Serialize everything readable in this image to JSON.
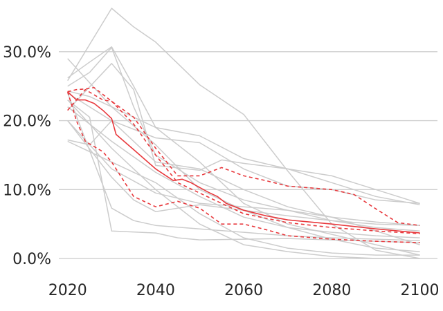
{
  "chart_data": {
    "type": "line",
    "title": "",
    "xlabel": "",
    "ylabel": "",
    "xlim": [
      2018,
      2104
    ],
    "ylim": [
      -1.8,
      36.5
    ],
    "x_ticks": [
      2020,
      2040,
      2060,
      2080,
      2100
    ],
    "x_tick_labels": [
      "2020",
      "2040",
      "2060",
      "2080",
      "2100"
    ],
    "y_ticks": [
      0,
      10,
      20,
      30
    ],
    "y_tick_labels": [
      "0.0%",
      "10.0%",
      "20.0%",
      "30.0%"
    ],
    "grid": "horizontal",
    "legend": "none",
    "colors": {
      "background_series": "#cccccc",
      "highlight": "#e8393d",
      "gridline": "#cfcfcf",
      "text": "#262626"
    },
    "background_series": [
      {
        "x": [
          2020,
          2030,
          2035,
          2040,
          2050,
          2060,
          2070,
          2080,
          2090,
          2100
        ],
        "values": [
          25.8,
          36.3,
          33.6,
          31.4,
          25.2,
          20.9,
          12.7,
          5.0,
          1.2,
          0.0
        ]
      },
      {
        "x": [
          2020,
          2025,
          2030,
          2035,
          2040,
          2050,
          2060,
          2070,
          2080,
          2090,
          2100
        ],
        "values": [
          26.2,
          28.5,
          30.7,
          25.0,
          19.0,
          14.0,
          8.0,
          5.0,
          3.5,
          2.0,
          0.5
        ]
      },
      {
        "x": [
          2020,
          2025,
          2030,
          2035,
          2040,
          2050,
          2060,
          2070,
          2080,
          2090,
          2100
        ],
        "values": [
          25.0,
          27.0,
          30.6,
          22.0,
          15.0,
          11.0,
          8.5,
          7.0,
          6.0,
          5.3,
          4.8
        ]
      },
      {
        "x": [
          2020,
          2025,
          2030,
          2035,
          2040,
          2050,
          2060,
          2070,
          2080,
          2090,
          2100
        ],
        "values": [
          24.3,
          23.5,
          22.0,
          20.5,
          19.0,
          17.8,
          14.5,
          13.0,
          12.0,
          10.0,
          8.0
        ]
      },
      {
        "x": [
          2020,
          2030,
          2040,
          2050,
          2060,
          2070,
          2080,
          2090,
          2100
        ],
        "values": [
          29.0,
          22.0,
          16.5,
          10.0,
          7.0,
          4.5,
          2.8,
          1.5,
          1.0
        ]
      },
      {
        "x": [
          2020,
          2030,
          2035,
          2040,
          2050,
          2055,
          2060,
          2070,
          2080,
          2090,
          2100
        ],
        "values": [
          21.5,
          28.3,
          24.5,
          13.5,
          12.8,
          14.3,
          13.8,
          13.0,
          11.0,
          9.0,
          7.8
        ]
      },
      {
        "x": [
          2020,
          2025,
          2030,
          2040,
          2050,
          2060,
          2070,
          2080,
          2090,
          2100
        ],
        "values": [
          17.2,
          16.5,
          20.0,
          17.5,
          16.8,
          13.0,
          10.5,
          10.0,
          8.5,
          8.0
        ]
      },
      {
        "x": [
          2020,
          2030,
          2035,
          2040,
          2050,
          2060,
          2070,
          2080,
          2090,
          2100
        ],
        "values": [
          20.0,
          11.8,
          8.5,
          6.8,
          7.8,
          7.0,
          6.2,
          5.5,
          5.0,
          4.8
        ]
      },
      {
        "x": [
          2020,
          2030,
          2035,
          2040,
          2050,
          2060,
          2070,
          2080,
          2090,
          2100
        ],
        "values": [
          24.0,
          7.3,
          5.5,
          4.8,
          4.3,
          3.8,
          3.3,
          3.0,
          2.8,
          2.6
        ]
      },
      {
        "x": [
          2020,
          2025,
          2030,
          2040,
          2045,
          2050,
          2060,
          2070,
          2080,
          2090,
          2100
        ],
        "values": [
          23.0,
          20.5,
          4.0,
          3.7,
          3.0,
          2.7,
          2.8,
          2.9,
          2.7,
          2.5,
          2.3
        ]
      },
      {
        "x": [
          2020,
          2030,
          2040,
          2050,
          2060,
          2070,
          2080,
          2090,
          2100
        ],
        "values": [
          17.0,
          14.0,
          11.0,
          6.5,
          3.0,
          1.5,
          0.8,
          0.5,
          0.5
        ]
      },
      {
        "x": [
          2020,
          2030,
          2040,
          2050,
          2060,
          2070,
          2080,
          2090,
          2100
        ],
        "values": [
          23.0,
          16.0,
          10.0,
          5.0,
          2.0,
          1.0,
          0.3,
          0.0,
          0.0
        ]
      },
      {
        "x": [
          2020,
          2030,
          2040,
          2050,
          2060,
          2070,
          2080,
          2090,
          2100
        ],
        "values": [
          22.0,
          17.0,
          12.5,
          9.0,
          6.0,
          4.5,
          3.8,
          3.3,
          3.0
        ]
      },
      {
        "x": [
          2020,
          2030,
          2040,
          2050,
          2060,
          2070,
          2080,
          2090,
          2100
        ],
        "values": [
          20.0,
          13.0,
          9.5,
          8.0,
          7.5,
          7.0,
          5.5,
          4.5,
          4.0
        ]
      },
      {
        "x": [
          2020,
          2030,
          2040,
          2050,
          2060,
          2070,
          2080,
          2090,
          2100
        ],
        "values": [
          24.0,
          20.0,
          14.0,
          13.0,
          10.0,
          7.5,
          6.0,
          4.0,
          2.0
        ]
      }
    ],
    "highlight_series": [
      {
        "style": "solid",
        "x": [
          2020,
          2022,
          2024,
          2026,
          2028,
          2030,
          2031,
          2035,
          2040,
          2044,
          2046,
          2048,
          2050,
          2052,
          2054,
          2056,
          2060,
          2065,
          2070,
          2080,
          2090,
          2100
        ],
        "values": [
          24.2,
          23.0,
          23.0,
          22.5,
          21.5,
          20.3,
          18.0,
          15.8,
          13.0,
          11.3,
          11.5,
          11.0,
          10.3,
          9.6,
          9.0,
          8.0,
          7.0,
          6.2,
          5.6,
          5.0,
          4.3,
          3.7
        ]
      },
      {
        "style": "dashed",
        "x": [
          2020,
          2022,
          2024,
          2026,
          2030,
          2035,
          2040,
          2045,
          2050,
          2055,
          2060,
          2065,
          2070,
          2080,
          2085,
          2090,
          2095,
          2100
        ],
        "values": [
          24.2,
          24.5,
          24.6,
          24.8,
          22.8,
          20.5,
          16.0,
          12.0,
          12.0,
          13.2,
          12.0,
          11.3,
          10.5,
          10.0,
          9.3,
          7.2,
          5.2,
          4.8
        ]
      },
      {
        "style": "dashed",
        "x": [
          2020,
          2024,
          2028,
          2030,
          2032,
          2035,
          2040,
          2045,
          2050,
          2055,
          2060,
          2070,
          2080,
          2090,
          2100
        ],
        "values": [
          21.5,
          24.5,
          23.0,
          22.8,
          21.5,
          19.5,
          15.0,
          11.0,
          9.5,
          8.0,
          6.5,
          5.2,
          4.5,
          4.0,
          3.6
        ]
      },
      {
        "style": "dashed",
        "x": [
          2020,
          2022,
          2024,
          2028,
          2030,
          2031,
          2033,
          2035,
          2040,
          2045,
          2050,
          2055,
          2060,
          2065,
          2070,
          2080,
          2090,
          2100
        ],
        "values": [
          24.2,
          20.0,
          17.0,
          15.5,
          14.0,
          13.0,
          11.0,
          9.0,
          7.5,
          8.3,
          7.3,
          5.0,
          5.0,
          4.2,
          3.3,
          2.8,
          2.5,
          2.3
        ]
      }
    ]
  }
}
